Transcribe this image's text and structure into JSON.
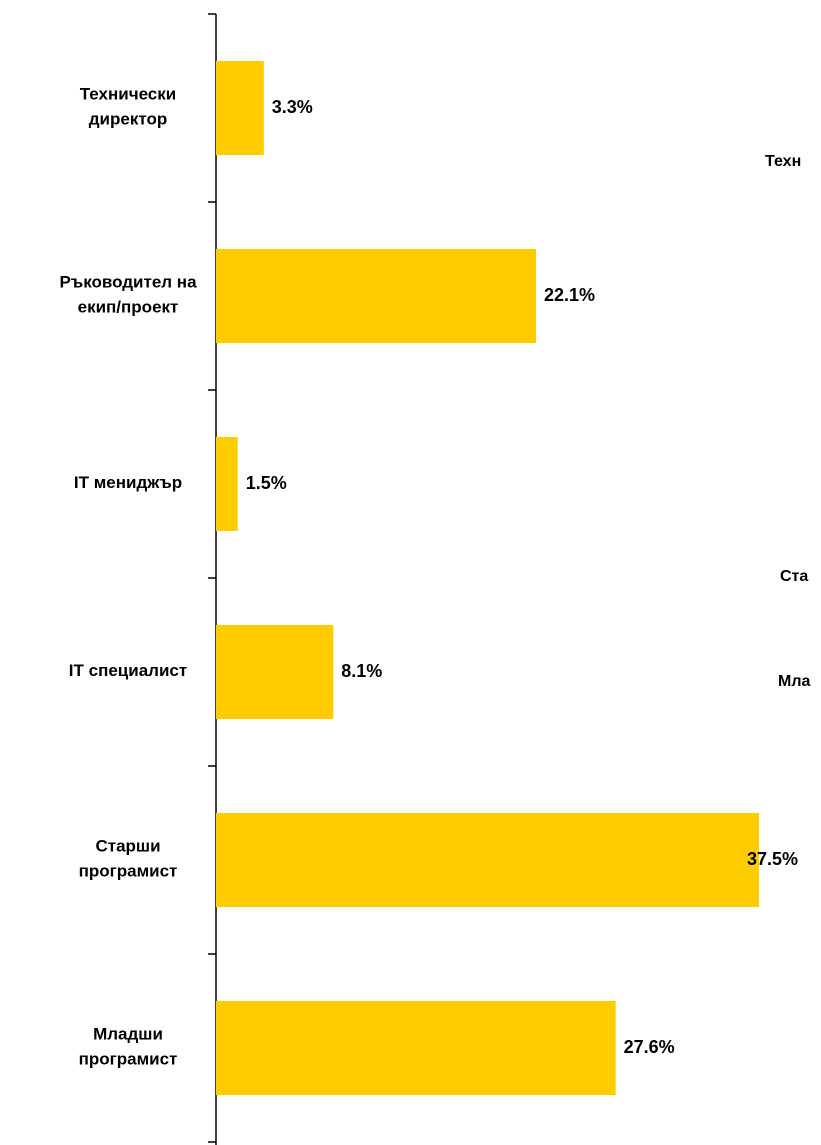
{
  "chart_data": {
    "type": "barh",
    "categories": [
      [
        "Технически",
        "директор"
      ],
      [
        "Ръководител на",
        "екип/проект"
      ],
      [
        "IT мениджър"
      ],
      [
        "IT специалист"
      ],
      [
        "Старши",
        "програмист"
      ],
      [
        "Младши",
        "програмист"
      ]
    ],
    "values": [
      3.3,
      22.1,
      1.5,
      8.1,
      37.5,
      27.6
    ],
    "value_labels": [
      "3.3%",
      "22.1%",
      "1.5%",
      "8.1%",
      "37.5%",
      "27.6%"
    ],
    "color": "#ffcc00",
    "xlim": [
      0,
      40
    ],
    "annotations": [
      "Техн",
      "Ста",
      "Мла"
    ]
  }
}
